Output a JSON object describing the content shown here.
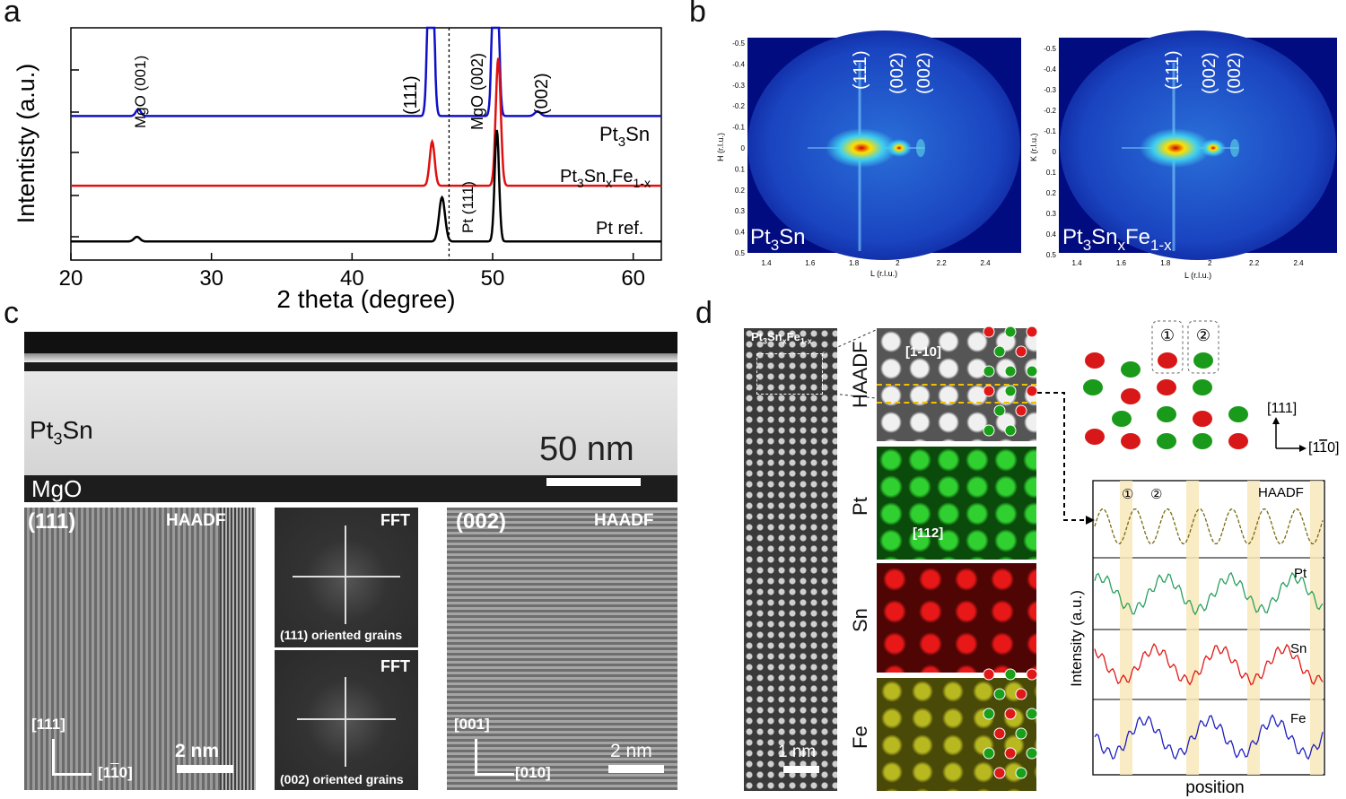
{
  "panels": {
    "a": "a",
    "b": "b",
    "c": "c",
    "d": "d"
  },
  "chart_data": {
    "type": "line",
    "title": "",
    "xlabel": "2 theta (degree)",
    "ylabel": "Intentisty (a.u.)",
    "xlim": [
      20,
      62
    ],
    "xticks": [
      "20",
      "30",
      "40",
      "50",
      "60"
    ],
    "xtick_values": [
      20,
      30,
      40,
      50,
      60
    ],
    "series": [
      {
        "name": "Pt3Sn",
        "color": "#1010c8",
        "offset": 0.62,
        "peaks": [
          [
            24.8,
            0.03,
            0.25
          ],
          [
            45.6,
            1.2,
            0.25
          ],
          [
            50.2,
            1.2,
            0.25
          ],
          [
            53.2,
            0.02,
            0.3
          ]
        ]
      },
      {
        "name": "Pt3SnxFe1-x",
        "color": "#e01010",
        "offset": 0.32,
        "peaks": [
          [
            45.7,
            0.19,
            0.25
          ],
          [
            50.4,
            0.55,
            0.25
          ]
        ]
      },
      {
        "name": "Pt ref.",
        "color": "#000000",
        "offset": 0.08,
        "peaks": [
          [
            24.7,
            0.02,
            0.3
          ],
          [
            46.4,
            0.19,
            0.3
          ],
          [
            50.3,
            0.48,
            0.22
          ]
        ]
      }
    ],
    "dashed_line_x": 46.9,
    "annotations": [
      "MgO (001)",
      "(111)",
      "MgO (002)",
      "(002)",
      "Pt (111)"
    ],
    "legend_labels": {
      "s1_base": "Pt",
      "s1_sub": "3",
      "s1_tail": "Sn",
      "s2_base": "Pt",
      "s2_sub1": "3",
      "s2_mid": "Sn",
      "s2_sub2": "x",
      "s2_mid2": "Fe",
      "s2_sub3": "1-x",
      "s3": "Pt ref."
    }
  },
  "panel_b": {
    "left": {
      "ylabel": "H (r.l.u.)",
      "xlabel": "L (r.l.u.)",
      "sample_base": "Pt",
      "sample_sub": "3",
      "sample_tail": "Sn"
    },
    "right": {
      "ylabel": "K (r.l.u.)",
      "xlabel": "L (r.l.u.)",
      "sample_base": "Pt",
      "sample_sub1": "3",
      "sample_mid": "Sn",
      "sample_sub2": "x",
      "sample_mid2": "Fe",
      "sample_sub3": "1-x"
    },
    "yticks": [
      "-0.5",
      "-0.4",
      "-0.3",
      "-0.2",
      "-0.1",
      "0",
      "0.1",
      "0.2",
      "0.3",
      "0.4",
      "0.5"
    ],
    "xticks": [
      "1.4",
      "1.6",
      "1.8",
      "2",
      "2.2",
      "2.4"
    ],
    "peaks": [
      "(111)",
      "(002)",
      "(002)"
    ]
  },
  "panel_c": {
    "top": {
      "film_base": "Pt",
      "film_sub": "3",
      "film_tail": "Sn",
      "substrate": "MgO",
      "scale": "50 nm"
    },
    "left": {
      "title": "(111)",
      "mode": "HAADF",
      "dir1": "[111]",
      "dir2": "[1",
      "dir2_bar": "1",
      "dir2_end": "0]",
      "scale": "2 nm"
    },
    "fft_top": {
      "label": "FFT",
      "caption": "(111) oriented grains"
    },
    "fft_bottom": {
      "label": "FFT",
      "caption": "(002) oriented grains"
    },
    "right": {
      "title": "(002)",
      "mode": "HAADF",
      "dir1": "[001]",
      "dir2": "[010]",
      "scale": "2 nm"
    }
  },
  "panel_d": {
    "strip": {
      "label_base": "Pt",
      "label_sub1": "3",
      "label_mid": "Sn",
      "label_sub2": "x",
      "label_mid2": "Fe",
      "label_sub3": "1-x",
      "scale": "1 nm"
    },
    "maps": [
      {
        "name": "HAADF",
        "note": "[1-10]",
        "color": "#cfcfcf"
      },
      {
        "name": "Pt",
        "note": "[112]",
        "color": "#1e9a1e"
      },
      {
        "name": "Sn",
        "note": "",
        "color": "#c01515"
      },
      {
        "name": "Fe",
        "note": "",
        "color": "#9a9a18"
      }
    ],
    "crystal": {
      "dir_up": "[111]",
      "dir_right": "[1",
      "dir_right_bar": "1",
      "dir_right_end": "0]",
      "site1": "①",
      "site2": "②"
    },
    "profile": {
      "ylabel": "Intensity (a.u.)",
      "xlabel": "position",
      "site1": "①",
      "site2": "②",
      "traces": [
        {
          "name": "HAADF",
          "color": "#7a6a10"
        },
        {
          "name": "Pt",
          "color": "#2aa060"
        },
        {
          "name": "Sn",
          "color": "#e01818"
        },
        {
          "name": "Fe",
          "color": "#2020c0"
        }
      ]
    }
  }
}
